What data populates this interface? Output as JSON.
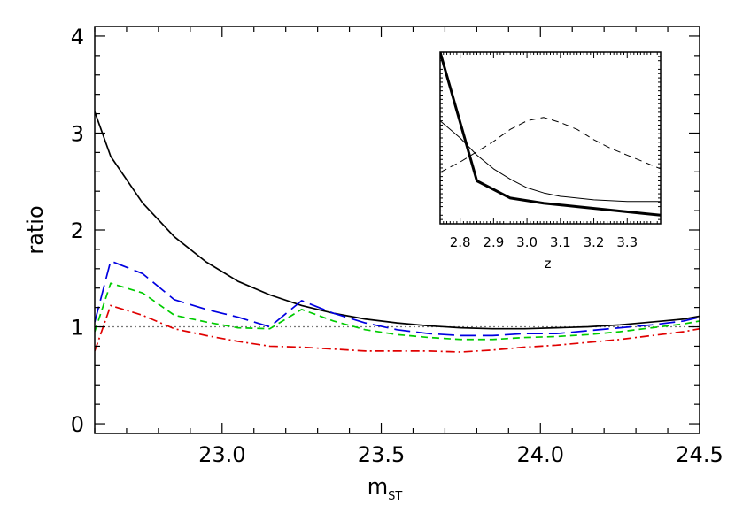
{
  "chart_data": [
    {
      "type": "line",
      "title": "",
      "xlabel": "m",
      "xlabel_sub": "ST",
      "ylabel": "ratio",
      "xlim": [
        22.6,
        24.5
      ],
      "ylim": [
        -0.1,
        4.1
      ],
      "xticks": [
        23.0,
        23.5,
        24.0,
        24.5
      ],
      "xtick_labels": [
        "23.0",
        "23.5",
        "24.0",
        "24.5"
      ],
      "yticks": [
        0,
        1,
        2,
        3,
        4
      ],
      "ytick_labels": [
        "0",
        "1",
        "2",
        "3",
        "4"
      ],
      "grid": false,
      "legend": "none",
      "reference_line": {
        "y": 1,
        "style": "dotted",
        "color": "#777777"
      },
      "series": [
        {
          "color": "#000000",
          "dash": "solid",
          "width": 1.7,
          "x": [
            22.6,
            22.65,
            22.75,
            22.85,
            22.95,
            23.05,
            23.15,
            23.25,
            23.35,
            23.45,
            23.55,
            23.65,
            23.75,
            23.85,
            23.95,
            24.05,
            24.15,
            24.25,
            24.35,
            24.45,
            24.5
          ],
          "y": [
            3.22,
            2.76,
            2.28,
            1.93,
            1.67,
            1.47,
            1.33,
            1.22,
            1.14,
            1.08,
            1.04,
            1.01,
            0.99,
            0.98,
            0.98,
            0.99,
            1.0,
            1.02,
            1.05,
            1.08,
            1.11
          ]
        },
        {
          "color": "#0000e0",
          "dash": "long-dash",
          "width": 1.7,
          "x": [
            22.6,
            22.65,
            22.75,
            22.85,
            22.95,
            23.05,
            23.15,
            23.25,
            23.35,
            23.45,
            23.55,
            23.65,
            23.75,
            23.85,
            23.95,
            24.05,
            24.15,
            24.25,
            24.35,
            24.45,
            24.5
          ],
          "y": [
            1.05,
            1.68,
            1.55,
            1.28,
            1.18,
            1.1,
            1.0,
            1.27,
            1.14,
            1.04,
            0.97,
            0.93,
            0.91,
            0.91,
            0.93,
            0.93,
            0.96,
            0.99,
            1.02,
            1.06,
            1.1
          ]
        },
        {
          "color": "#00cc00",
          "dash": "dashed",
          "width": 1.7,
          "x": [
            22.6,
            22.65,
            22.75,
            22.85,
            22.95,
            23.05,
            23.15,
            23.25,
            23.35,
            23.45,
            23.55,
            23.65,
            23.75,
            23.85,
            23.95,
            24.05,
            24.15,
            24.25,
            24.35,
            24.45,
            24.5
          ],
          "y": [
            0.95,
            1.45,
            1.35,
            1.12,
            1.05,
            0.99,
            0.98,
            1.18,
            1.06,
            0.97,
            0.92,
            0.89,
            0.87,
            0.87,
            0.89,
            0.9,
            0.92,
            0.95,
            0.99,
            1.03,
            1.06
          ]
        },
        {
          "color": "#e00000",
          "dash": "dash-dot",
          "width": 1.7,
          "x": [
            22.6,
            22.65,
            22.75,
            22.85,
            22.95,
            23.05,
            23.15,
            23.25,
            23.35,
            23.45,
            23.55,
            23.65,
            23.75,
            23.85,
            23.95,
            24.05,
            24.15,
            24.25,
            24.35,
            24.45,
            24.5
          ],
          "y": [
            0.75,
            1.22,
            1.12,
            0.98,
            0.91,
            0.85,
            0.8,
            0.79,
            0.77,
            0.75,
            0.75,
            0.75,
            0.74,
            0.76,
            0.79,
            0.81,
            0.84,
            0.87,
            0.91,
            0.95,
            0.98
          ]
        }
      ]
    },
    {
      "type": "line",
      "title": "",
      "xlabel": "z",
      "ylabel": "",
      "xlim": [
        2.74,
        3.4
      ],
      "ylim": [
        0,
        1
      ],
      "xticks": [
        2.8,
        2.9,
        3.0,
        3.1,
        3.2,
        3.3
      ],
      "xtick_labels": [
        "2.8",
        "2.9",
        "3.0",
        "3.1",
        "3.2",
        "3.3"
      ],
      "yticks": [],
      "grid": false,
      "legend": "none",
      "series": [
        {
          "color": "#000000",
          "dash": "solid",
          "width": 3,
          "x": [
            2.74,
            2.85,
            2.95,
            3.05,
            3.15,
            3.25,
            3.35,
            3.4
          ],
          "y": [
            1.0,
            0.25,
            0.15,
            0.12,
            0.1,
            0.08,
            0.06,
            0.05
          ]
        },
        {
          "color": "#000000",
          "dash": "solid",
          "width": 1,
          "x": [
            2.74,
            2.8,
            2.85,
            2.9,
            2.95,
            3.0,
            3.05,
            3.1,
            3.2,
            3.3,
            3.4
          ],
          "y": [
            0.6,
            0.5,
            0.4,
            0.32,
            0.26,
            0.21,
            0.18,
            0.16,
            0.14,
            0.13,
            0.13
          ]
        },
        {
          "color": "#000000",
          "dash": "dashed",
          "width": 1,
          "x": [
            2.74,
            2.8,
            2.85,
            2.9,
            2.95,
            3.0,
            3.05,
            3.1,
            3.15,
            3.2,
            3.25,
            3.3,
            3.35,
            3.4
          ],
          "y": [
            0.3,
            0.36,
            0.42,
            0.48,
            0.55,
            0.6,
            0.62,
            0.59,
            0.55,
            0.49,
            0.44,
            0.4,
            0.36,
            0.32
          ]
        }
      ]
    }
  ]
}
